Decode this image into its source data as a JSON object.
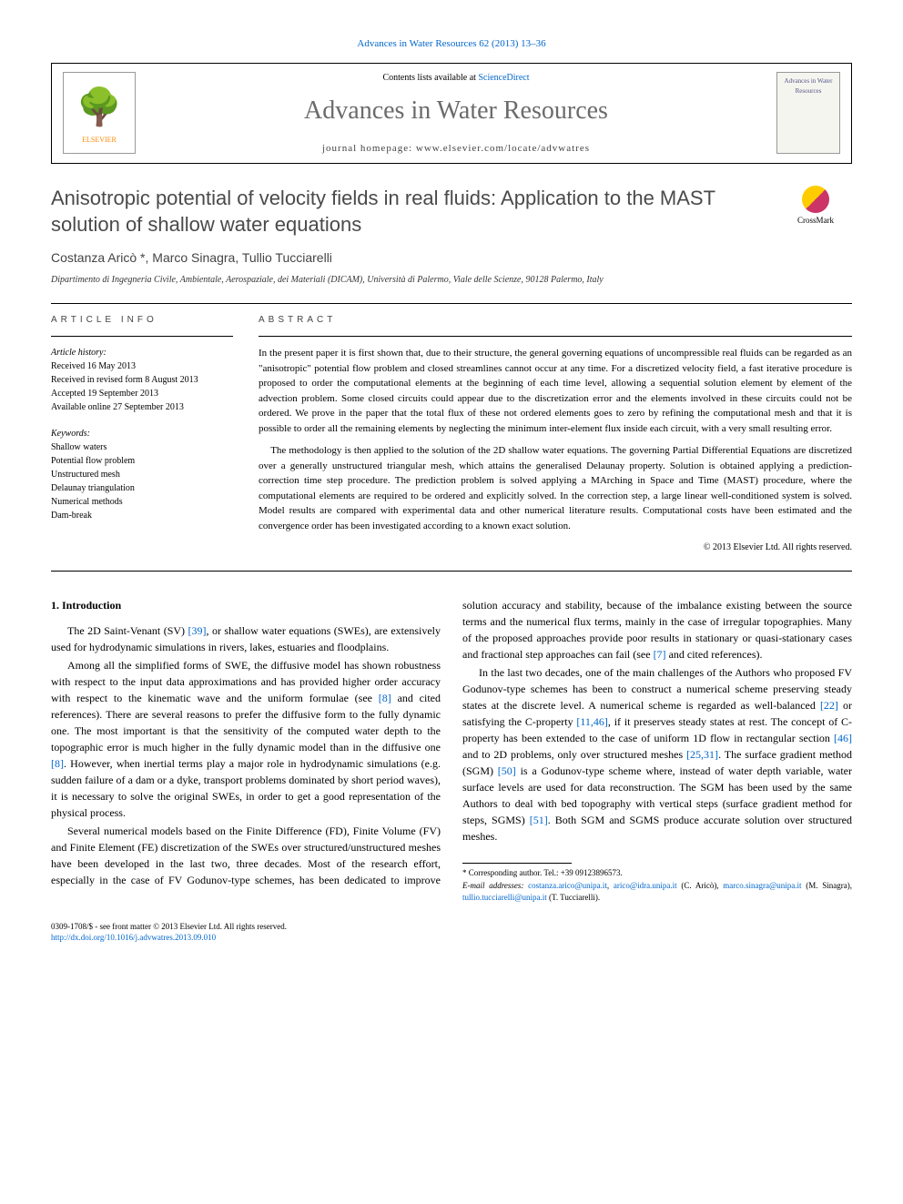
{
  "header": {
    "top_link": "Advances in Water Resources 62 (2013) 13–36",
    "contents_prefix": "Contents lists available at ",
    "contents_link": "ScienceDirect",
    "journal_name": "Advances in Water Resources",
    "homepage_prefix": "journal homepage: ",
    "homepage_url": "www.elsevier.com/locate/advwatres",
    "publisher": "ELSEVIER",
    "cover_text": "Advances in Water Resources"
  },
  "article": {
    "title": "Anisotropic potential of velocity fields in real fluids: Application to the MAST solution of shallow water equations",
    "crossmark_label": "CrossMark",
    "authors": "Costanza Aricò *, Marco Sinagra, Tullio Tucciarelli",
    "affiliation": "Dipartimento di Ingegneria Civile, Ambientale, Aerospaziale, dei Materiali (DICAM), Università di Palermo, Viale delle Scienze, 90128 Palermo, Italy"
  },
  "info": {
    "heading": "ARTICLE INFO",
    "history_label": "Article history:",
    "history": [
      "Received 16 May 2013",
      "Received in revised form 8 August 2013",
      "Accepted 19 September 2013",
      "Available online 27 September 2013"
    ],
    "keywords_label": "Keywords:",
    "keywords": [
      "Shallow waters",
      "Potential flow problem",
      "Unstructured mesh",
      "Delaunay triangulation",
      "Numerical methods",
      "Dam-break"
    ]
  },
  "abstract": {
    "heading": "ABSTRACT",
    "paragraphs": [
      "In the present paper it is first shown that, due to their structure, the general governing equations of uncompressible real fluids can be regarded as an \"anisotropic\" potential flow problem and closed streamlines cannot occur at any time. For a discretized velocity field, a fast iterative procedure is proposed to order the computational elements at the beginning of each time level, allowing a sequential solution element by element of the advection problem. Some closed circuits could appear due to the discretization error and the elements involved in these circuits could not be ordered. We prove in the paper that the total flux of these not ordered elements goes to zero by refining the computational mesh and that it is possible to order all the remaining elements by neglecting the minimum inter-element flux inside each circuit, with a very small resulting error.",
      "The methodology is then applied to the solution of the 2D shallow water equations. The governing Partial Differential Equations are discretized over a generally unstructured triangular mesh, which attains the generalised Delaunay property. Solution is obtained applying a prediction-correction time step procedure. The prediction problem is solved applying a MArching in Space and Time (MAST) procedure, where the computational elements are required to be ordered and explicitly solved. In the correction step, a large linear well-conditioned system is solved. Model results are compared with experimental data and other numerical literature results. Computational costs have been estimated and the convergence order has been investigated according to a known exact solution."
    ],
    "copyright": "© 2013 Elsevier Ltd. All rights reserved."
  },
  "body": {
    "heading": "1. Introduction",
    "p1_a": "The 2D Saint-Venant (SV) ",
    "p1_ref1": "[39]",
    "p1_b": ", or shallow water equations (SWEs), are extensively used for hydrodynamic simulations in rivers, lakes, estuaries and floodplains.",
    "p2_a": "Among all the simplified forms of SWE, the diffusive model has shown robustness with respect to the input data approximations and has provided higher order accuracy with respect to the kinematic wave and the uniform formulae (see ",
    "p2_ref1": "[8]",
    "p2_b": " and cited references). There are several reasons to prefer the diffusive form to the fully dynamic one. The most important is that the sensitivity of the computed water depth to the topographic error is much higher in the fully dynamic model than in the diffusive one ",
    "p2_ref2": "[8]",
    "p2_c": ". However, when inertial terms play a major role in hydrodynamic simulations (e.g. sudden failure of a dam or a dyke, transport problems dominated by short period waves), it is necessary to solve the original SWEs, in order to get a good representation of the physical process.",
    "p3_a": "Several numerical models based on the Finite Difference (FD), Finite Volume (FV) and Finite Element (FE) discretization of the SWEs over structured/unstructured meshes have been developed in the last two, three decades. Most of the research effort, especially in the case of FV Godunov-type schemes, has been dedicated to improve solution accuracy and stability, because of the imbalance existing between the source terms and the numerical flux terms, mainly in the case of irregular topographies. Many of the proposed approaches provide poor results in stationary or quasi-stationary cases and fractional step approaches can fail (see ",
    "p3_ref1": "[7]",
    "p3_b": " and cited references).",
    "p4_a": "In the last two decades, one of the main challenges of the Authors who proposed FV Godunov-type schemes has been to construct a numerical scheme preserving steady states at the discrete level. A numerical scheme is regarded as well-balanced ",
    "p4_ref1": "[22]",
    "p4_b": " or satisfying the C-property ",
    "p4_ref2": "[11,46]",
    "p4_c": ", if it preserves steady states at rest. The concept of C-property has been extended to the case of uniform 1D flow in rectangular section ",
    "p4_ref3": "[46]",
    "p4_d": " and to 2D problems, only over structured meshes ",
    "p4_ref4": "[25,31]",
    "p4_e": ". The surface gradient method (SGM) ",
    "p4_ref5": "[50]",
    "p4_f": " is a Godunov-type scheme where, instead of water depth variable, water surface levels are used for data reconstruction. The SGM has been used by the same Authors to deal with bed topography with vertical steps (surface gradient method for steps, SGMS) ",
    "p4_ref6": "[51]",
    "p4_g": ". Both SGM and SGMS produce accurate solution over structured meshes."
  },
  "footnotes": {
    "corr": "* Corresponding author. Tel.: +39 09123896573.",
    "email_label": "E-mail addresses: ",
    "e1": "costanza.arico@unipa.it",
    "e2": "arico@idra.unipa.it",
    "n1": " (C. Aricò), ",
    "e3": "marco.sinagra@unipa.it",
    "n2": " (M. Sinagra), ",
    "e4": "tullio.tucciarelli@unipa.it",
    "n3": " (T. Tucciarelli)."
  },
  "footer": {
    "issn": "0309-1708/$ - see front matter © 2013 Elsevier Ltd. All rights reserved.",
    "doi": "http://dx.doi.org/10.1016/j.advwatres.2013.09.010"
  },
  "colors": {
    "link": "#0066cc",
    "journal_grey": "#6b6b6b",
    "text_grey": "#4a4a4a"
  }
}
